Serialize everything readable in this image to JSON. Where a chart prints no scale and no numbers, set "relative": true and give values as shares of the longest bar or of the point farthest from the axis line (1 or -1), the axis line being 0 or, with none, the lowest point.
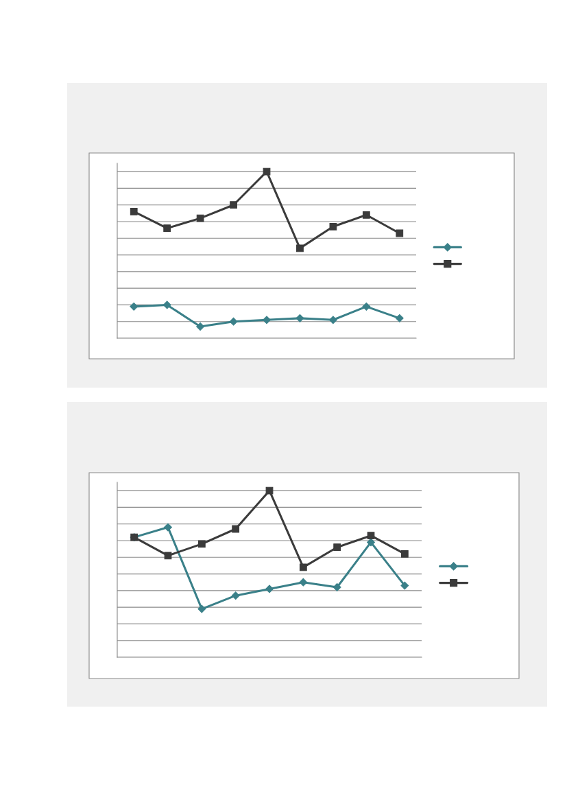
{
  "chart_data": [
    {
      "type": "line",
      "relative": true,
      "categories": [
        null,
        null,
        null,
        null,
        null,
        null,
        null,
        null,
        null
      ],
      "grid": "y",
      "series": [
        {
          "color": "#3a8089",
          "marker": "diamond",
          "values": [
            0.19,
            0.2,
            0.07,
            0.1,
            0.11,
            0.12,
            0.11,
            0.19,
            0.12
          ]
        },
        {
          "color": "#3b3b3b",
          "marker": "square",
          "values": [
            0.76,
            0.66,
            0.72,
            0.8,
            1,
            0.54,
            0.67,
            0.74,
            0.63
          ]
        }
      ]
    },
    {
      "type": "line",
      "relative": true,
      "categories": [
        null,
        null,
        null,
        null,
        null,
        null,
        null,
        null,
        null
      ],
      "grid": "y",
      "series": [
        {
          "color": "#3a8089",
          "marker": "diamond",
          "values": [
            0.72,
            0.78,
            0.29,
            0.37,
            0.41,
            0.45,
            0.42,
            0.69,
            0.43
          ]
        },
        {
          "color": "#3b3b3b",
          "marker": "square",
          "values": [
            0.72,
            0.61,
            0.68,
            0.77,
            1,
            0.54,
            0.66,
            0.73,
            0.62
          ]
        }
      ]
    }
  ]
}
